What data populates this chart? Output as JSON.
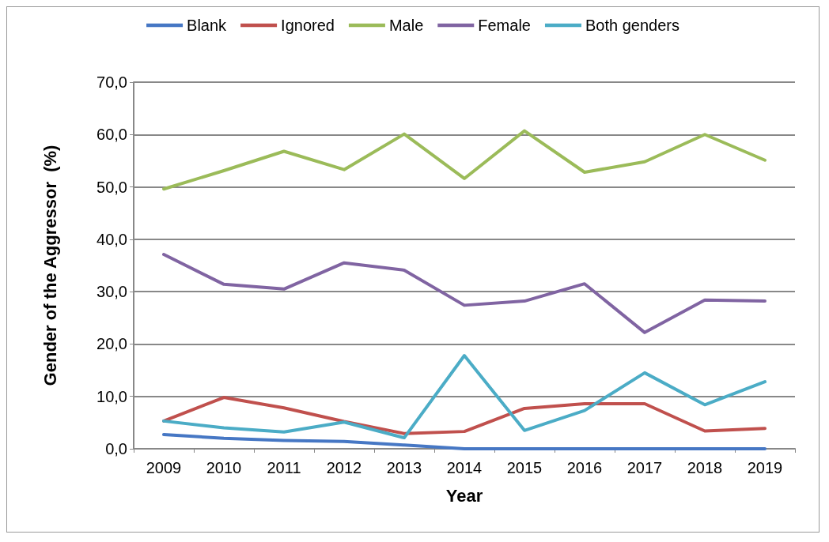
{
  "chart_data": {
    "type": "line",
    "xlabel": "Year",
    "ylabel": "Gender of the Aggressor  (%)",
    "categories": [
      "2009",
      "2010",
      "2011",
      "2012",
      "2013",
      "2014",
      "2015",
      "2016",
      "2017",
      "2018",
      "2019"
    ],
    "series": [
      {
        "name": "Blank",
        "color": "#4677c4",
        "values": [
          2.7,
          2.0,
          1.6,
          1.4,
          0.7,
          0,
          0,
          0,
          0,
          0,
          0
        ]
      },
      {
        "name": "Ignored",
        "color": "#c0504d",
        "values": [
          5.3,
          9.8,
          7.8,
          5.2,
          2.9,
          3.3,
          7.7,
          8.6,
          8.6,
          3.4,
          3.9
        ]
      },
      {
        "name": "Male",
        "color": "#9bbb59",
        "values": [
          49.6,
          53.1,
          56.8,
          53.3,
          60.1,
          51.6,
          60.7,
          52.8,
          54.8,
          60.0,
          55.1
        ]
      },
      {
        "name": "Female",
        "color": "#8064a2",
        "values": [
          37.1,
          31.4,
          30.5,
          35.5,
          34.1,
          27.4,
          28.2,
          31.5,
          22.2,
          28.4,
          28.2
        ]
      },
      {
        "name": "Both genders",
        "color": "#4bacc6",
        "values": [
          5.3,
          4.0,
          3.2,
          5.1,
          2.1,
          17.8,
          3.5,
          7.3,
          14.5,
          8.4,
          12.8
        ]
      }
    ],
    "ylim": [
      0,
      70
    ],
    "yticks": [
      {
        "value": 0,
        "label": "0,0"
      },
      {
        "value": 10,
        "label": "10,0"
      },
      {
        "value": 20,
        "label": "20,0"
      },
      {
        "value": 30,
        "label": "30,0"
      },
      {
        "value": 40,
        "label": "40,0"
      },
      {
        "value": 50,
        "label": "50,0"
      },
      {
        "value": 60,
        "label": "60,0"
      },
      {
        "value": 70,
        "label": "70,0"
      }
    ],
    "grid": "y",
    "legend": "top",
    "marker": "none",
    "line_style": "solid"
  }
}
